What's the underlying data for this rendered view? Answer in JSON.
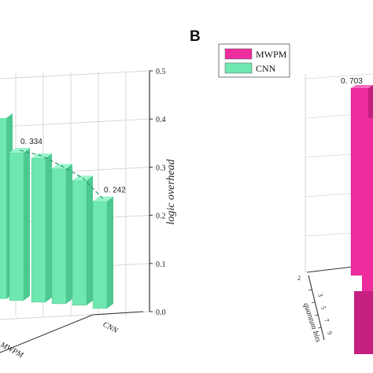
{
  "colors": {
    "cnn": "#6ee8b0",
    "cnn_side": "#4cc890",
    "cnn_top": "#9bf5cc",
    "mwpm": "#ee2c9e",
    "mwpm_side": "#c51f80",
    "mwpm_top": "#f56dbd",
    "grid": "#c8c8c8",
    "axis": "#333333"
  },
  "panel_b": {
    "label": "B"
  },
  "chart_data": [
    {
      "type": "bar",
      "panel": "A",
      "zlabel": "logic overhead",
      "zlim": [
        0.0,
        0.5
      ],
      "zticks": [
        "0.0",
        "0.1",
        "0.2",
        "0.3",
        "0.4",
        "0.5"
      ],
      "row_labels": [
        "CNN",
        "MWPM"
      ],
      "series": [
        {
          "name": "CNN",
          "values": [
            0.334,
            0.325,
            0.305,
            0.282,
            0.242
          ],
          "data_labels": [
            {
              "index": 0,
              "text": "0. 334"
            },
            {
              "index": 4,
              "text": "0. 242"
            }
          ]
        }
      ]
    },
    {
      "type": "bar",
      "panel": "B",
      "ylabel": "quantum bits",
      "yticks": [
        "3",
        "5",
        "7",
        "9"
      ],
      "yticks_left": [
        "2"
      ],
      "legend": [
        "MWPM",
        "CNN"
      ],
      "legend_position": "top-left",
      "series": [
        {
          "name": "MWPM",
          "values": [
            0.703
          ],
          "data_labels": [
            {
              "index": 0,
              "text": "0. 703"
            }
          ]
        }
      ]
    }
  ]
}
